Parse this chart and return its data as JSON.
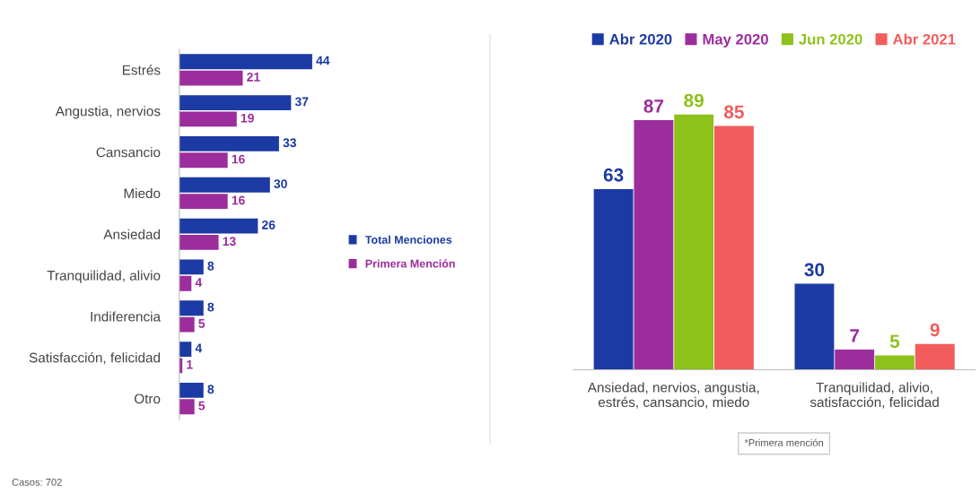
{
  "chart_data": [
    {
      "type": "bar",
      "orientation": "horizontal",
      "categories": [
        "Estrés",
        "Angustia, nervios",
        "Cansancio",
        "Miedo",
        "Ansiedad",
        "Tranquilidad, alivio",
        "Indiferencia",
        "Satisfacción, felicidad",
        "Otro"
      ],
      "series": [
        {
          "name": "Total Menciones",
          "color": "#1c3aa3",
          "values": [
            44,
            37,
            33,
            30,
            26,
            8,
            8,
            4,
            8
          ]
        },
        {
          "name": "Primera Mención",
          "color": "#9c2d9c",
          "values": [
            21,
            19,
            16,
            16,
            13,
            4,
            5,
            1,
            5
          ]
        }
      ],
      "data_labels": true,
      "legend": "right",
      "annotations": [
        "Casos: 702"
      ]
    },
    {
      "type": "bar",
      "categories": [
        "Ansiedad, nervios, angustia,\nestrés, cansancio, miedo",
        "Tranquilidad, alivio,\nsatisfacción, felicidad"
      ],
      "series": [
        {
          "name": "Abr 2020",
          "color": "#1c3aa3",
          "values": [
            63,
            30
          ]
        },
        {
          "name": "May 2020",
          "color": "#9c2d9c",
          "values": [
            87,
            7
          ]
        },
        {
          "name": "Jun 2020",
          "color": "#8cc21a",
          "values": [
            89,
            5
          ]
        },
        {
          "name": "Abr 2021",
          "color": "#f25c5c",
          "values": [
            85,
            9
          ]
        }
      ],
      "data_labels": true,
      "legend": "top",
      "annotations": [
        "*Primera mención"
      ]
    }
  ]
}
